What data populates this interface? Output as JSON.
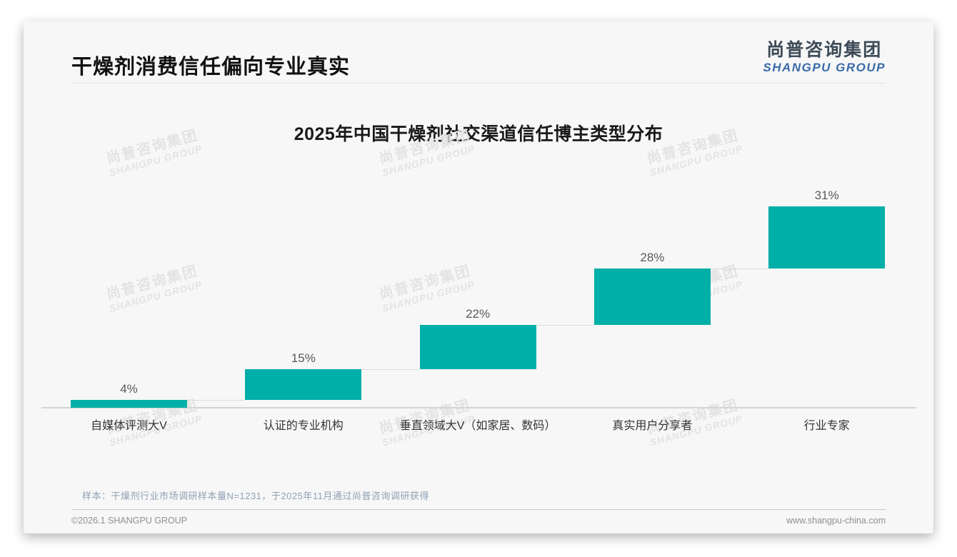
{
  "header": {
    "title": "干燥剂消费信任偏向专业真实",
    "logo_cn": "尚普咨询集团",
    "logo_en": "SHANGPU GROUP"
  },
  "watermark": {
    "cn": "尚普咨询集团",
    "en": "SHANGPU GROUP"
  },
  "chart_data": {
    "type": "bar",
    "variant": "waterfall-steps",
    "title": "2025年中国干燥剂社交渠道信任博主类型分布",
    "categories": [
      "自媒体评测大V",
      "认证的专业机构",
      "垂直领域大V（如家居、数码）",
      "真实用户分享者",
      "行业专家"
    ],
    "values": [
      4,
      15,
      22,
      28,
      31
    ],
    "value_labels": [
      "4%",
      "15%",
      "22%",
      "28%",
      "31%"
    ],
    "cumulative": [
      4,
      19,
      41,
      69,
      100
    ],
    "ylim": [
      0,
      100
    ],
    "grid": false,
    "legend": false,
    "bar_color": "#00AFA7",
    "connector_color": "#dcdcdc",
    "value_label_color": "#595959"
  },
  "footer": {
    "note": "样本：干燥剂行业市场调研样本量N=1231，于2025年11月通过尚普咨询调研获得",
    "copyright": "©2026.1 SHANGPU GROUP",
    "website": "www.shangpu-china.com"
  }
}
